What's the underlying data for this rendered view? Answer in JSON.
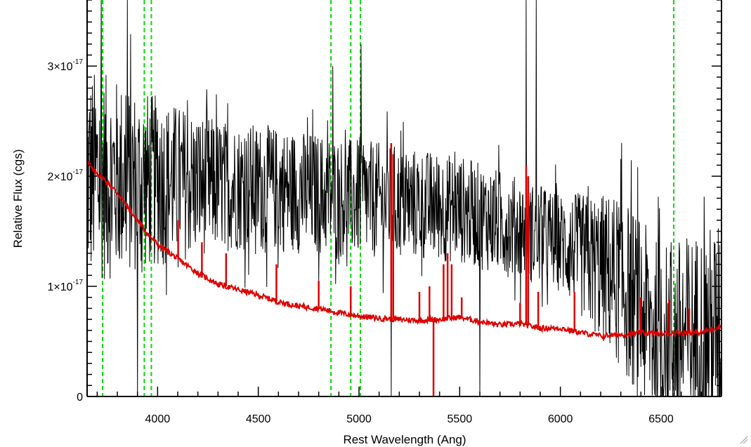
{
  "chart_data": {
    "type": "line",
    "title": "",
    "xlabel": "Rest Wavelength (Ang)",
    "ylabel": "Relative Flux (cgs)",
    "xlim": [
      3650,
      6800
    ],
    "ylim": [
      0,
      3.6e-17
    ],
    "x_ticks": [
      4000,
      4500,
      5000,
      5500,
      6000,
      6500
    ],
    "x_tick_labels": [
      "4000",
      "4500",
      "5000",
      "5500",
      "6000",
      "6500"
    ],
    "y_ticks": [
      {
        "value": 0,
        "mantissa": "0",
        "exponent": ""
      },
      {
        "value": 1e-17,
        "mantissa": "1×10",
        "exponent": "-17"
      },
      {
        "value": 2e-17,
        "mantissa": "2×10",
        "exponent": "-17"
      },
      {
        "value": 3e-17,
        "mantissa": "3×10",
        "exponent": "-17"
      }
    ],
    "grid": false,
    "vertical_markers": {
      "color": "#00dd00",
      "style": "dashed",
      "x": [
        3727,
        3934,
        3969,
        4861,
        4959,
        5007,
        6563
      ]
    },
    "series": [
      {
        "color": "#000000",
        "description": "observed spectrum (noisy)",
        "mean_trend": [
          [
            3650,
            2e-17
          ],
          [
            4000,
            1.95e-17
          ],
          [
            4500,
            1.9e-17
          ],
          [
            5000,
            1.8e-17
          ],
          [
            5500,
            1.7e-17
          ],
          [
            6000,
            1.4e-17
          ],
          [
            6300,
            1.05e-17
          ],
          [
            6500,
            5e-18
          ],
          [
            6800,
            6e-18
          ]
        ],
        "noise_amplitude": [
          [
            3650,
            1e-17
          ],
          [
            4300,
            6e-18
          ],
          [
            6000,
            4.5e-18
          ],
          [
            6300,
            8e-18
          ],
          [
            6800,
            1e-17
          ]
        ],
        "spikes": [
          [
            3720,
            3.6e-17
          ],
          [
            3850,
            3.6e-17
          ],
          [
            5830,
            3.6e-17
          ],
          [
            5880,
            3.6e-17
          ],
          [
            5010,
            3.2e-17
          ],
          [
            4870,
            3e-17
          ],
          [
            5160,
            0
          ],
          [
            5600,
            0
          ],
          [
            3900,
            0
          ],
          [
            6550,
            1.4e-17
          ]
        ]
      },
      {
        "color": "#dd0000",
        "description": "model spectrum",
        "points": [
          [
            3650,
            2.15e-17
          ],
          [
            3680,
            2.05e-17
          ],
          [
            3720,
            2e-17
          ],
          [
            3800,
            1.85e-17
          ],
          [
            3850,
            1.72e-17
          ],
          [
            3900,
            1.6e-17
          ],
          [
            3950,
            1.48e-17
          ],
          [
            4000,
            1.38e-17
          ],
          [
            4100,
            1.25e-17
          ],
          [
            4200,
            1.12e-17
          ],
          [
            4300,
            1.02e-17
          ],
          [
            4400,
            9.7e-18
          ],
          [
            4500,
            9.2e-18
          ],
          [
            4600,
            8.6e-18
          ],
          [
            4700,
            8.2e-18
          ],
          [
            4800,
            8e-18
          ],
          [
            4900,
            7.6e-18
          ],
          [
            5000,
            7.3e-18
          ],
          [
            5100,
            7.1e-18
          ],
          [
            5200,
            7e-18
          ],
          [
            5300,
            6.9e-18
          ],
          [
            5400,
            7e-18
          ],
          [
            5500,
            7.2e-18
          ],
          [
            5600,
            6.8e-18
          ],
          [
            5700,
            6.5e-18
          ],
          [
            5800,
            6.6e-18
          ],
          [
            5900,
            6.2e-18
          ],
          [
            6000,
            6.2e-18
          ],
          [
            6100,
            5.8e-18
          ],
          [
            6200,
            5.5e-18
          ],
          [
            6300,
            5.6e-18
          ],
          [
            6400,
            5.8e-18
          ],
          [
            6500,
            5.7e-18
          ],
          [
            6600,
            5.8e-18
          ],
          [
            6700,
            5.8e-18
          ],
          [
            6800,
            6.4e-18
          ]
        ],
        "emission_lines": [
          [
            4102,
            1.6e-17
          ],
          [
            4220,
            1.4e-17
          ],
          [
            4340,
            1.3e-17
          ],
          [
            4590,
            1.2e-17
          ],
          [
            4800,
            1.05e-17
          ],
          [
            4959,
            1e-17
          ],
          [
            5160,
            2.3e-17
          ],
          [
            5170,
            2.2e-17
          ],
          [
            5300,
            9.5e-18
          ],
          [
            5350,
            1e-17
          ],
          [
            5420,
            1.2e-17
          ],
          [
            5440,
            1.3e-17
          ],
          [
            5460,
            1.2e-17
          ],
          [
            5510,
            9e-18
          ],
          [
            5800,
            8.5e-18
          ],
          [
            5830,
            2.1e-17
          ],
          [
            5840,
            2e-17
          ],
          [
            5890,
            9.5e-18
          ],
          [
            6070,
            9.5e-18
          ],
          [
            6400,
            9e-18
          ],
          [
            6540,
            8.8e-18
          ],
          [
            6640,
            8e-18
          ]
        ],
        "absorption_lines": [
          [
            5370,
            0
          ]
        ]
      }
    ]
  }
}
